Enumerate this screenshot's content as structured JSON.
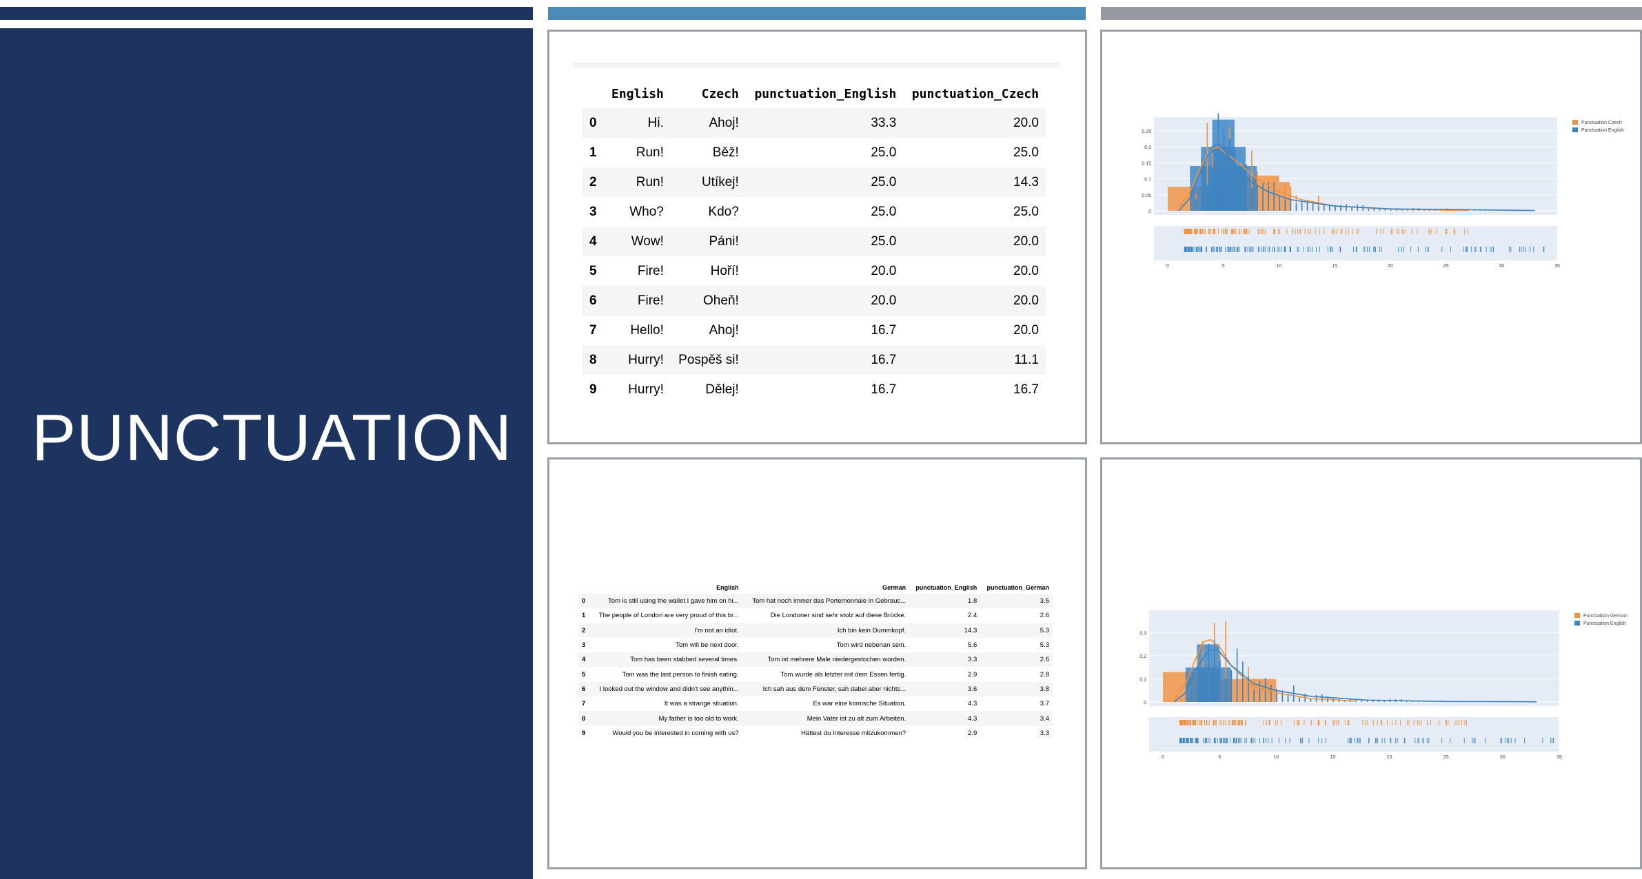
{
  "slide": {
    "title": "PUNCTUATION"
  },
  "table_czech": {
    "columns": [
      "English",
      "Czech",
      "punctuation_English",
      "punctuation_Czech"
    ],
    "rows": [
      {
        "idx": "0",
        "en": "Hi.",
        "other": "Ahoj!",
        "pe": "33.3",
        "po": "20.0"
      },
      {
        "idx": "1",
        "en": "Run!",
        "other": "Běž!",
        "pe": "25.0",
        "po": "25.0"
      },
      {
        "idx": "2",
        "en": "Run!",
        "other": "Utíkej!",
        "pe": "25.0",
        "po": "14.3"
      },
      {
        "idx": "3",
        "en": "Who?",
        "other": "Kdo?",
        "pe": "25.0",
        "po": "25.0"
      },
      {
        "idx": "4",
        "en": "Wow!",
        "other": "Páni!",
        "pe": "25.0",
        "po": "20.0"
      },
      {
        "idx": "5",
        "en": "Fire!",
        "other": "Hoří!",
        "pe": "20.0",
        "po": "20.0"
      },
      {
        "idx": "6",
        "en": "Fire!",
        "other": "Oheň!",
        "pe": "20.0",
        "po": "20.0"
      },
      {
        "idx": "7",
        "en": "Hello!",
        "other": "Ahoj!",
        "pe": "16.7",
        "po": "20.0"
      },
      {
        "idx": "8",
        "en": "Hurry!",
        "other": "Pospěš si!",
        "pe": "16.7",
        "po": "11.1"
      },
      {
        "idx": "9",
        "en": "Hurry!",
        "other": "Dělej!",
        "pe": "16.7",
        "po": "16.7"
      }
    ]
  },
  "table_german": {
    "columns": [
      "English",
      "German",
      "punctuation_English",
      "punctuation_German"
    ],
    "rows": [
      {
        "idx": "0",
        "en": "Tom is still using the wallet I gave him on hi...",
        "other": "Tom hat noch immer das Portemonnaie in Gebrauc...",
        "pe": "1.8",
        "po": "3.5"
      },
      {
        "idx": "1",
        "en": "The people of London are very proud of this br...",
        "other": "Die Londoner sind sehr stolz auf diese Brücke.",
        "pe": "2.4",
        "po": "2.6"
      },
      {
        "idx": "2",
        "en": "I'm not an idiot.",
        "other": "Ich bin kein Dummkopf.",
        "pe": "14.3",
        "po": "5.3"
      },
      {
        "idx": "3",
        "en": "Tom will be next door.",
        "other": "Tom wird nebenan sein.",
        "pe": "5.6",
        "po": "5.3"
      },
      {
        "idx": "4",
        "en": "Tom has been stabbed several times.",
        "other": "Tom ist mehrere Male niedergestochen worden.",
        "pe": "3.3",
        "po": "2.6"
      },
      {
        "idx": "5",
        "en": "Tom was the last person to finish eating.",
        "other": "Tom wurde als letzter mit dem Essen fertig.",
        "pe": "2.9",
        "po": "2.8"
      },
      {
        "idx": "6",
        "en": "I looked out the window and didn't see anythin...",
        "other": "Ich sah aus dem Fenster, sah dabei aber nichts...",
        "pe": "3.6",
        "po": "3.8"
      },
      {
        "idx": "7",
        "en": "It was a strange situation.",
        "other": "Es war eine komische Situation.",
        "pe": "4.3",
        "po": "3.7"
      },
      {
        "idx": "8",
        "en": "My father is too old to work.",
        "other": "Mein Vater ist zu alt zum Arbeiten.",
        "pe": "4.3",
        "po": "3.4"
      },
      {
        "idx": "9",
        "en": "Would you be interested in coming with us?",
        "other": "Hättest du Interesse mitzukommen?",
        "pe": "2.9",
        "po": "3.3"
      }
    ]
  },
  "colors": {
    "orange": "#f0913f",
    "blue": "#3b84c4",
    "navy": "#1d3461",
    "plot_bg": "#e5ecf6"
  },
  "chart_data": [
    {
      "type": "histogram",
      "legend": [
        "Punctuation Czech",
        "Punctuation English"
      ],
      "legend_position": "top-right",
      "x_ticks": [
        "0",
        "5",
        "10",
        "15",
        "20",
        "25",
        "30",
        "35"
      ],
      "y_ticks": [
        "0",
        "0.05",
        "0.1",
        "0.15",
        "0.2",
        "0.25"
      ],
      "xlim": [
        0,
        35
      ],
      "ylim": [
        0,
        0.28
      ],
      "rug_plot": true,
      "series": [
        {
          "name": "Punctuation Czech",
          "color": "orange",
          "bars": [
            [
              0,
              5,
              0.075
            ],
            [
              5,
              10,
              0.11
            ],
            [
              10,
              11,
              0.09
            ]
          ],
          "density": [
            [
              1,
              0.01
            ],
            [
              2,
              0.06
            ],
            [
              3,
              0.14
            ],
            [
              3.8,
              0.19
            ],
            [
              4.5,
              0.2
            ],
            [
              5.2,
              0.18
            ],
            [
              6,
              0.16
            ],
            [
              7,
              0.13
            ],
            [
              8,
              0.1
            ],
            [
              9,
              0.08
            ],
            [
              10,
              0.06
            ],
            [
              12,
              0.035
            ],
            [
              15,
              0.015
            ],
            [
              20,
              0.005
            ],
            [
              27,
              0.001
            ]
          ]
        },
        {
          "name": "Punctuation English",
          "color": "blue",
          "bars": [
            [
              4,
              6,
              0.285
            ],
            [
              3,
              7,
              0.2
            ],
            [
              2,
              8,
              0.14
            ]
          ],
          "density": [
            [
              1,
              0.0
            ],
            [
              2,
              0.04
            ],
            [
              3,
              0.13
            ],
            [
              4,
              0.2
            ],
            [
              4.6,
              0.21
            ],
            [
              5.5,
              0.17
            ],
            [
              7,
              0.1
            ],
            [
              9,
              0.06
            ],
            [
              11,
              0.035
            ],
            [
              15,
              0.015
            ],
            [
              20,
              0.006
            ],
            [
              33,
              0.001
            ]
          ]
        }
      ]
    },
    {
      "type": "histogram",
      "legend": [
        "Punctuation German",
        "Punctuation English"
      ],
      "legend_position": "top-right",
      "x_ticks": [
        "0",
        "5",
        "10",
        "15",
        "20",
        "25",
        "30",
        "35"
      ],
      "y_ticks": [
        "0",
        "0.1",
        "0.2",
        "0.3"
      ],
      "xlim": [
        0,
        35
      ],
      "ylim": [
        0,
        0.38
      ],
      "rug_plot": true,
      "series": [
        {
          "name": "Punctuation German",
          "color": "orange",
          "bars": [
            [
              0,
              5,
              0.13
            ],
            [
              5,
              10,
              0.1
            ]
          ],
          "density": [
            [
              1,
              0.01
            ],
            [
              2,
              0.08
            ],
            [
              3,
              0.2
            ],
            [
              3.5,
              0.26
            ],
            [
              4.2,
              0.27
            ],
            [
              5,
              0.24
            ],
            [
              6,
              0.16
            ],
            [
              7,
              0.11
            ],
            [
              8,
              0.07
            ],
            [
              10,
              0.04
            ],
            [
              13,
              0.015
            ],
            [
              17,
              0.004
            ]
          ]
        },
        {
          "name": "Punctuation English",
          "color": "blue",
          "bars": [
            [
              3,
              5,
              0.25
            ],
            [
              2,
              6,
              0.15
            ]
          ],
          "density": [
            [
              1,
              0.0
            ],
            [
              2,
              0.04
            ],
            [
              3,
              0.15
            ],
            [
              4,
              0.22
            ],
            [
              4.8,
              0.23
            ],
            [
              6,
              0.16
            ],
            [
              8,
              0.08
            ],
            [
              10,
              0.05
            ],
            [
              13,
              0.025
            ],
            [
              18,
              0.008
            ],
            [
              25,
              0.002
            ],
            [
              33,
              0.001
            ]
          ]
        }
      ]
    }
  ]
}
